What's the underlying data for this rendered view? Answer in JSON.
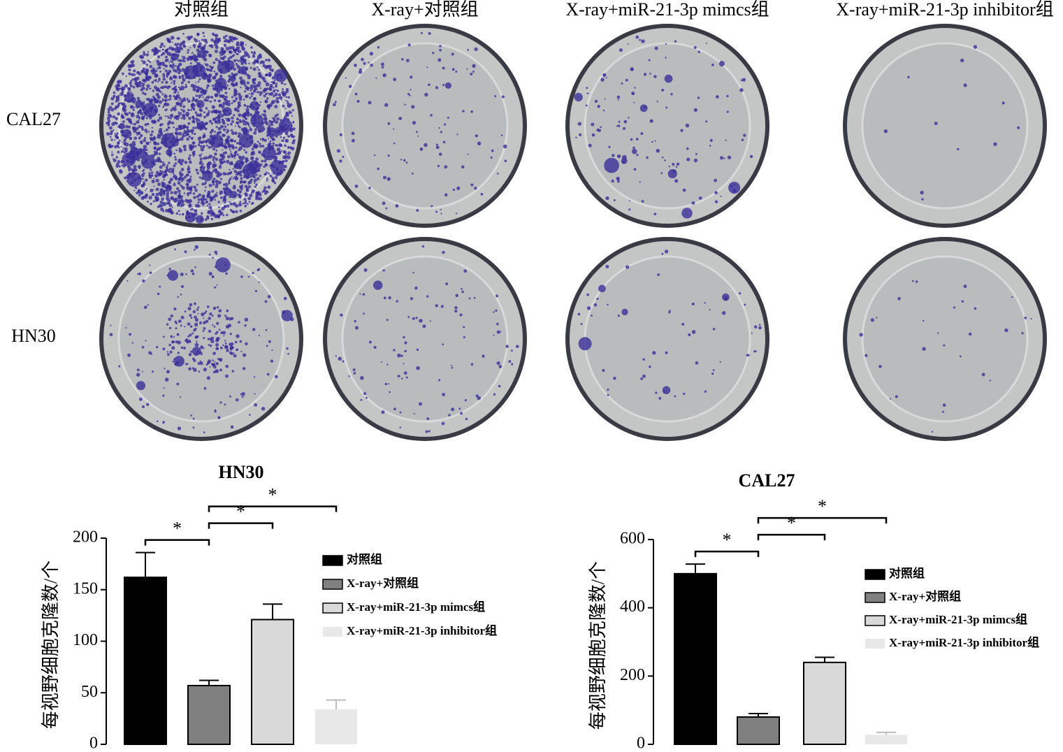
{
  "photo_panel": {
    "columns": [
      "对照组",
      "X-ray+对照组",
      "X-ray+miR-21-3p mimcs组",
      "X-ray+miR-21-3p inhibitor组"
    ],
    "rows": [
      "CAL27",
      "HN30"
    ]
  },
  "chart_data": [
    {
      "type": "bar",
      "title": "HN30",
      "y_label": "每视野细胞克隆数/个",
      "categories": [
        "对照组",
        "X-ray+对照组",
        "X-ray+miR-21-3p mimcs组",
        "X-ray+miR-21-3p inhibitor组"
      ],
      "values": [
        162,
        57,
        121,
        34
      ],
      "errors": [
        24,
        5,
        15,
        9
      ],
      "colors": [
        "#000000",
        "#808080",
        "#d9d9d9",
        "#e8e8e8"
      ],
      "ylim": [
        0,
        200
      ],
      "yticks": [
        0,
        50,
        100,
        150,
        200
      ],
      "significance": [
        {
          "groups": [
            0,
            1
          ],
          "label": "*"
        },
        {
          "groups": [
            1,
            2
          ],
          "label": "*"
        },
        {
          "groups": [
            1,
            3
          ],
          "label": "*"
        }
      ]
    },
    {
      "type": "bar",
      "title": "CAL27",
      "y_label": "每视野细胞克隆数/个",
      "categories": [
        "对照组",
        "X-ray+对照组",
        "X-ray+miR-21-3p mimcs组",
        "X-ray+miR-21-3p inhibitor组"
      ],
      "values": [
        500,
        80,
        240,
        28
      ],
      "errors": [
        28,
        10,
        15,
        7
      ],
      "colors": [
        "#000000",
        "#808080",
        "#d9d9d9",
        "#e8e8e8"
      ],
      "ylim": [
        0,
        600
      ],
      "yticks": [
        0,
        200,
        400,
        600
      ],
      "significance": [
        {
          "groups": [
            0,
            1
          ],
          "label": "*"
        },
        {
          "groups": [
            1,
            2
          ],
          "label": "*"
        },
        {
          "groups": [
            1,
            3
          ],
          "label": "*"
        }
      ]
    }
  ]
}
